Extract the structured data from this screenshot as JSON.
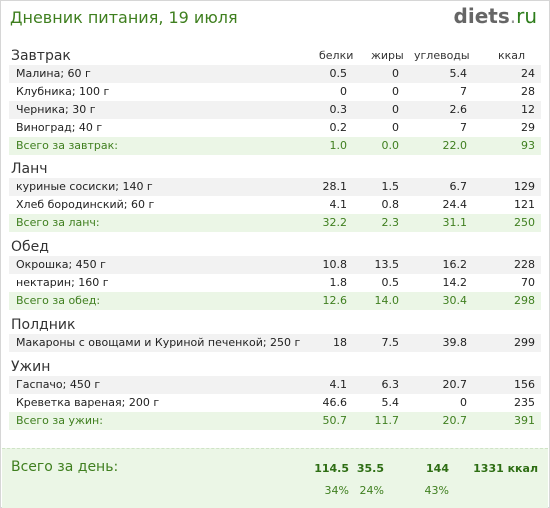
{
  "header": {
    "title": "Дневник питания, 19 июля",
    "logo_main": "diets",
    "logo_dot": ".",
    "logo_tld": "ru"
  },
  "columns": {
    "protein": "белки",
    "fat": "жиры",
    "carbs": "углеводы",
    "kcal": "ккал"
  },
  "sections": [
    {
      "title": "Завтрак",
      "foods": [
        {
          "name": "Малина; 60 г",
          "p": "0.5",
          "f": "0",
          "c": "5.4",
          "k": "24"
        },
        {
          "name": "Клубника; 100 г",
          "p": "0",
          "f": "0",
          "c": "7",
          "k": "28"
        },
        {
          "name": "Черника; 30 г",
          "p": "0.3",
          "f": "0",
          "c": "2.6",
          "k": "12"
        },
        {
          "name": "Виноград; 40 г",
          "p": "0.2",
          "f": "0",
          "c": "7",
          "k": "29"
        }
      ],
      "total": {
        "label": "Всего за завтрак:",
        "p": "1.0",
        "f": "0.0",
        "c": "22.0",
        "k": "93"
      }
    },
    {
      "title": "Ланч",
      "foods": [
        {
          "name": "куриные сосиски; 140 г",
          "p": "28.1",
          "f": "1.5",
          "c": "6.7",
          "k": "129"
        },
        {
          "name": "Хлеб бородинский; 60 г",
          "p": "4.1",
          "f": "0.8",
          "c": "24.4",
          "k": "121"
        }
      ],
      "total": {
        "label": "Всего за ланч:",
        "p": "32.2",
        "f": "2.3",
        "c": "31.1",
        "k": "250"
      }
    },
    {
      "title": "Обед",
      "foods": [
        {
          "name": "Окрошка; 450 г",
          "p": "10.8",
          "f": "13.5",
          "c": "16.2",
          "k": "228"
        },
        {
          "name": "нектарин; 160 г",
          "p": "1.8",
          "f": "0.5",
          "c": "14.2",
          "k": "70"
        }
      ],
      "total": {
        "label": "Всего за обед:",
        "p": "12.6",
        "f": "14.0",
        "c": "30.4",
        "k": "298"
      }
    },
    {
      "title": "Полдник",
      "foods": [
        {
          "name": "Макароны с овощами и Куриной печенкой; 250 г",
          "p": "18",
          "f": "7.5",
          "c": "39.8",
          "k": "299"
        }
      ],
      "total": null
    },
    {
      "title": "Ужин",
      "foods": [
        {
          "name": "Гаспачо; 450 г",
          "p": "4.1",
          "f": "6.3",
          "c": "20.7",
          "k": "156"
        },
        {
          "name": "Креветка вареная; 200 г",
          "p": "46.6",
          "f": "5.4",
          "c": "0",
          "k": "235"
        }
      ],
      "total": {
        "label": "Всего за ужин:",
        "p": "50.7",
        "f": "11.7",
        "c": "20.7",
        "k": "391"
      }
    }
  ],
  "day": {
    "label": "Всего за день:",
    "p": "114.5",
    "f": "35.5",
    "c": "144",
    "k": "1331 ккал",
    "p_pct": "34%",
    "f_pct": "24%",
    "c_pct": "43%"
  }
}
